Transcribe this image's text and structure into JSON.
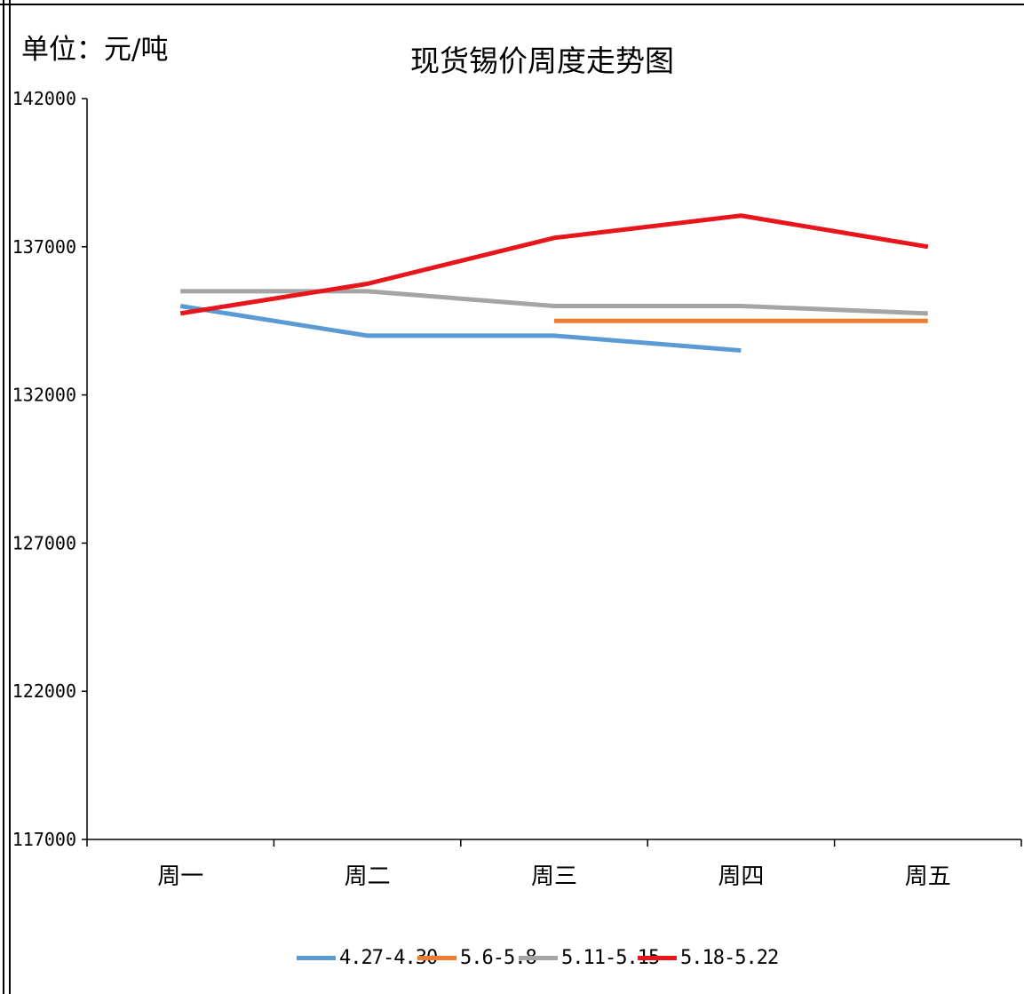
{
  "chart_data": {
    "type": "line",
    "title": "现货锡价周度走势图",
    "unit_label": "单位：元/吨",
    "categories": [
      "周一",
      "周二",
      "周三",
      "周四",
      "周五"
    ],
    "y_ticks": [
      "142000",
      "137000",
      "132000",
      "127000",
      "122000",
      "117000"
    ],
    "ylim": [
      117000,
      142000
    ],
    "grid": false,
    "legend_position": "bottom",
    "series": [
      {
        "name": "4.27-4.30",
        "color": "#5B9BD5",
        "values": [
          135000,
          134000,
          134000,
          133500,
          null
        ]
      },
      {
        "name": "5.6-5.8",
        "color": "#ED7D31",
        "values": [
          null,
          null,
          134500,
          134500,
          134500
        ]
      },
      {
        "name": "5.11-5.15",
        "color": "#A5A5A5",
        "values": [
          135500,
          135500,
          135000,
          135000,
          134750
        ]
      },
      {
        "name": "5.18-5.22",
        "color": "#E8161B",
        "values": [
          134750,
          135750,
          137300,
          138050,
          137000
        ]
      }
    ]
  }
}
